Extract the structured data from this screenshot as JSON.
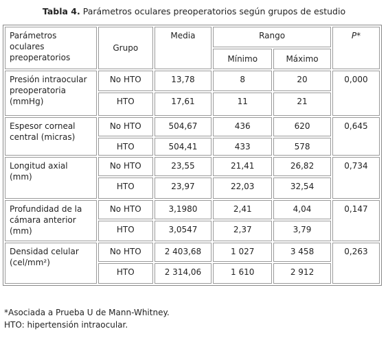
{
  "caption": {
    "label": "Tabla 4.",
    "text": "Parámetros oculares preoperatorios según grupos de estudio"
  },
  "table": {
    "header": {
      "parameter": "Parámetros oculares preoperatorios",
      "group": "Grupo",
      "mean": "Media",
      "range": "Rango",
      "min": "Mínimo",
      "max": "Máximo",
      "p": "P*"
    },
    "rows": [
      {
        "parameter": "Presión intraocular preoperatoria (mmHg)",
        "p": "0,000",
        "groups": [
          {
            "group": "No HTO",
            "mean": "13,78",
            "min": "8",
            "max": "20"
          },
          {
            "group": "HTO",
            "mean": "17,61",
            "min": "11",
            "max": "21"
          }
        ]
      },
      {
        "parameter": "Espesor corneal central (micras)",
        "p": "0,645",
        "groups": [
          {
            "group": "No HTO",
            "mean": "504,67",
            "min": "436",
            "max": "620"
          },
          {
            "group": "HTO",
            "mean": "504,41",
            "min": "433",
            "max": "578"
          }
        ]
      },
      {
        "parameter": "Longitud axial (mm)",
        "p": "0,734",
        "groups": [
          {
            "group": "No HTO",
            "mean": "23,55",
            "min": "21,41",
            "max": "26,82"
          },
          {
            "group": "HTO",
            "mean": "23,97",
            "min": "22,03",
            "max": "32,54"
          }
        ]
      },
      {
        "parameter": "Profundidad de la cámara anterior (mm)",
        "p": "0,147",
        "groups": [
          {
            "group": "No HTO",
            "mean": "3,1980",
            "min": "2,41",
            "max": "4,04"
          },
          {
            "group": "HTO",
            "mean": "3,0547",
            "min": "2,37",
            "max": "3,79"
          }
        ]
      },
      {
        "parameter": "Densidad celular (cel/mm²)",
        "p": "0,263",
        "groups": [
          {
            "group": "No HTO",
            "mean": "2 403,68",
            "min": "1 027",
            "max": "3 458"
          },
          {
            "group": "HTO",
            "mean": "2 314,06",
            "min": "1 610",
            "max": "2 912"
          }
        ]
      }
    ]
  },
  "footnotes": [
    "*Asociada a Prueba U de Mann-Whitney.",
    "HTO: hipertensión intraocular."
  ]
}
